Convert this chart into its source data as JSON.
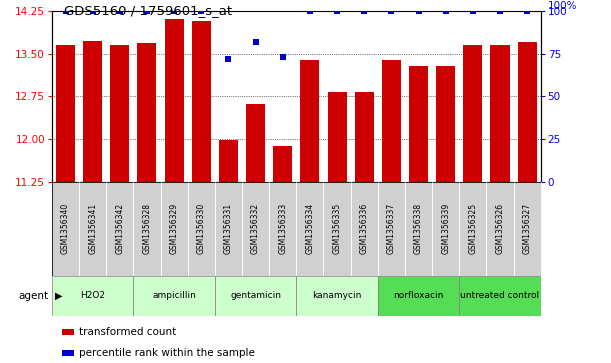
{
  "title": "GDS5160 / 1759601_s_at",
  "samples": [
    "GSM1356340",
    "GSM1356341",
    "GSM1356342",
    "GSM1356328",
    "GSM1356329",
    "GSM1356330",
    "GSM1356331",
    "GSM1356332",
    "GSM1356333",
    "GSM1356334",
    "GSM1356335",
    "GSM1356336",
    "GSM1356337",
    "GSM1356338",
    "GSM1356339",
    "GSM1356325",
    "GSM1356326",
    "GSM1356327"
  ],
  "transformed_count": [
    13.65,
    13.72,
    13.65,
    13.68,
    14.1,
    14.08,
    11.98,
    12.62,
    11.88,
    13.38,
    12.82,
    12.83,
    13.38,
    13.28,
    13.28,
    13.65,
    13.65,
    13.7
  ],
  "percentile_rank": [
    100,
    100,
    100,
    100,
    100,
    100,
    72,
    82,
    73,
    100,
    100,
    100,
    100,
    100,
    100,
    100,
    100,
    100
  ],
  "groups": [
    {
      "name": "H2O2",
      "start": 0,
      "end": 3,
      "light": true
    },
    {
      "name": "ampicillin",
      "start": 3,
      "end": 6,
      "light": true
    },
    {
      "name": "gentamicin",
      "start": 6,
      "end": 9,
      "light": true
    },
    {
      "name": "kanamycin",
      "start": 9,
      "end": 12,
      "light": true
    },
    {
      "name": "norfloxacin",
      "start": 12,
      "end": 15,
      "light": false
    },
    {
      "name": "untreated control",
      "start": 15,
      "end": 18,
      "light": false
    }
  ],
  "ylim_left": [
    11.25,
    14.25
  ],
  "ylim_right": [
    0,
    100
  ],
  "yticks_left": [
    11.25,
    12.0,
    12.75,
    13.5,
    14.25
  ],
  "yticks_right": [
    0,
    25,
    50,
    75,
    100
  ],
  "bar_color": "#cc0000",
  "scatter_color": "#0000cc",
  "sample_box_color": "#d0d0d0",
  "group_light_color": "#ccffcc",
  "group_dark_color": "#55dd55",
  "legend_red": "#cc0000",
  "legend_blue": "#0000cc"
}
